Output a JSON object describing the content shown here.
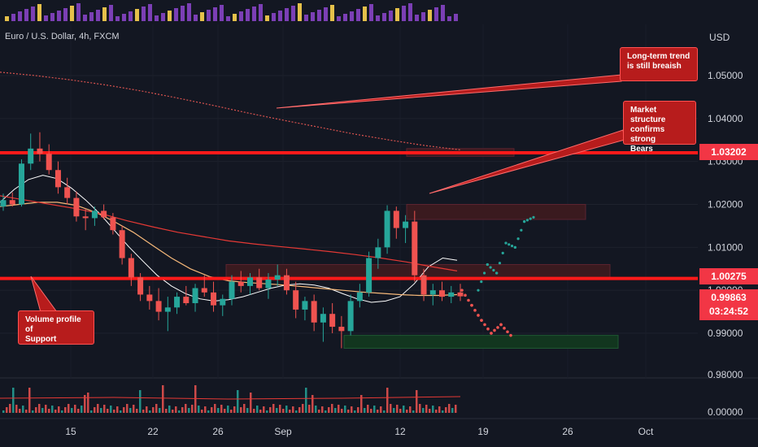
{
  "header": {
    "symbol_line": "Euro / U.S. Dollar, 4h, FXCM",
    "currency": "USD"
  },
  "colors": {
    "background": "#131722",
    "up": "#26a69a",
    "down": "#ef5350",
    "level_line": "#ff1a1a",
    "ma_fast": "#ffffff",
    "ma_mid": "#f7b97a",
    "ma_slow": "#e53935",
    "ma_200_dotted": "#d9534f",
    "zone_supply": "#3a1a1f",
    "zone_demand": "#12361f"
  },
  "annotations": {
    "long_term": "Long-term trend\nis still breaish",
    "market_structure": "Market structure\nconfirms strong\nBears",
    "volume_profile": "Volume profile of\nSupport"
  },
  "price_labels": {
    "resistance": "1.03202",
    "support": "1.00275",
    "last_price": "0.99863",
    "countdown": "03:24:52"
  },
  "chart_data": {
    "type": "candlestick",
    "title": "Euro / U.S. Dollar, 4h, FXCM",
    "y_axis": {
      "label": "USD",
      "ticks": [
        "1.05000",
        "1.04000",
        "1.03000",
        "1.02000",
        "1.01000",
        "1.00000",
        "0.99000",
        "0.98000"
      ],
      "range": [
        0.9795,
        1.0565
      ]
    },
    "volume_axis": {
      "ticks": [
        "0.00000"
      ]
    },
    "x_axis": {
      "ticks": [
        "15",
        "22",
        "26",
        "Sep",
        "12",
        "19",
        "26",
        "Oct"
      ]
    },
    "horizontal_levels": [
      1.03202,
      1.00275
    ],
    "last_price": 0.99863,
    "ohlc": [
      [
        1.0195,
        1.0225,
        1.0185,
        1.021
      ],
      [
        1.021,
        1.0228,
        1.0195,
        1.02
      ],
      [
        1.02,
        1.0305,
        1.0195,
        1.0295
      ],
      [
        1.0295,
        1.0365,
        1.028,
        1.033
      ],
      [
        1.033,
        1.0368,
        1.03,
        1.0318
      ],
      [
        1.0318,
        1.034,
        1.027,
        1.028
      ],
      [
        1.028,
        1.03,
        1.0225,
        1.024
      ],
      [
        1.024,
        1.0262,
        1.02,
        1.0215
      ],
      [
        1.0215,
        1.023,
        1.016,
        1.0172
      ],
      [
        1.0172,
        1.019,
        1.014,
        1.0168
      ],
      [
        1.0168,
        1.0195,
        1.015,
        1.0185
      ],
      [
        1.0185,
        1.02,
        1.0165,
        1.017
      ],
      [
        1.017,
        1.018,
        1.013,
        1.014
      ],
      [
        1.014,
        1.015,
        1.006,
        1.0075
      ],
      [
        1.0075,
        1.0085,
        1.001,
        1.003
      ],
      [
        1.003,
        1.004,
        0.9975,
        0.999
      ],
      [
        0.999,
        1.001,
        0.9955,
        0.9975
      ],
      [
        0.9975,
        1.0005,
        0.993,
        0.995
      ],
      [
        0.995,
        0.9985,
        0.9905,
        0.996
      ],
      [
        0.996,
        0.9995,
        0.9945,
        0.9985
      ],
      [
        0.9985,
        1.001,
        0.9965,
        0.997
      ],
      [
        0.997,
        1.0015,
        0.995,
        1.0005
      ],
      [
        1.0005,
        1.0035,
        0.9985,
        0.9995
      ],
      [
        0.9995,
        1.002,
        0.995,
        0.9965
      ],
      [
        0.9965,
        0.999,
        0.994,
        0.998
      ],
      [
        0.998,
        1.0035,
        0.9965,
        1.002
      ],
      [
        1.002,
        1.0045,
        0.9995,
        1.001
      ],
      [
        1.001,
        1.004,
        0.999,
        1.003
      ],
      [
        1.003,
        1.005,
        1.0,
        1.0005
      ],
      [
        1.0005,
        1.004,
        0.998,
        1.0025
      ],
      [
        1.0025,
        1.006,
        1.001,
        1.0035
      ],
      [
        1.0035,
        1.005,
        0.999,
        1.0
      ],
      [
        1.0,
        1.002,
        0.9935,
        0.9955
      ],
      [
        0.9955,
        0.9985,
        0.993,
        0.9975
      ],
      [
        0.9975,
        0.999,
        0.9905,
        0.9925
      ],
      [
        0.9925,
        0.996,
        0.988,
        0.9945
      ],
      [
        0.9945,
        0.997,
        0.99,
        0.9915
      ],
      [
        0.9915,
        0.994,
        0.9865,
        0.9905
      ],
      [
        0.9905,
        0.999,
        0.9895,
        0.9975
      ],
      [
        0.9975,
        1.0015,
        0.996,
        0.9995
      ],
      [
        0.9995,
        1.009,
        0.9985,
        1.0075
      ],
      [
        1.0075,
        1.012,
        1.005,
        1.01
      ],
      [
        1.01,
        1.0198,
        1.0085,
        1.0185
      ],
      [
        1.0185,
        1.0195,
        1.012,
        1.0145
      ],
      [
        1.0145,
        1.0175,
        1.011,
        1.016
      ],
      [
        1.016,
        1.0185,
        1.002,
        1.0035
      ],
      [
        1.0035,
        1.005,
        0.9975,
        0.999
      ],
      [
        0.999,
        1.0015,
        0.9965,
        1.0
      ],
      [
        1.0,
        1.002,
        0.9975,
        0.9985
      ],
      [
        0.9985,
        1.001,
        0.997,
        0.9995
      ],
      [
        0.9995,
        1.0015,
        0.9975,
        0.9986
      ]
    ],
    "moving_averages": [
      {
        "values": [
          1.0205,
          1.0235,
          1.0258,
          1.0268,
          1.026,
          1.0238,
          1.021,
          1.0178,
          1.014,
          1.0102,
          1.0068,
          1.0035,
          1.001,
          0.9992,
          0.998,
          0.9975,
          0.9978,
          0.9985,
          0.9995,
          1.0005,
          1.0012,
          1.0015,
          1.0012,
          1.0005,
          0.9992,
          0.998,
          0.9972,
          0.9975,
          0.9985,
          1.0015,
          1.0055,
          1.0075,
          1.007
        ]
      },
      {
        "values": [
          1.0195,
          1.02,
          1.0205,
          1.0205,
          1.0198,
          1.0182,
          1.016,
          1.0135,
          1.0105,
          1.0075,
          1.005,
          1.0032,
          1.0022,
          1.0018,
          1.0015,
          1.0012,
          1.0008,
          1.0004,
          1.0,
          0.9996,
          0.9993,
          0.999,
          0.9988,
          0.9988,
          0.999
        ]
      },
      {
        "values": [
          1.022,
          1.021,
          1.02,
          1.019,
          1.0178,
          1.0162,
          1.0148,
          1.0135,
          1.0125,
          1.0115,
          1.0108,
          1.0102,
          1.0096,
          1.009,
          1.0083,
          1.0075,
          1.0066,
          1.0055,
          1.0045
        ]
      },
      {
        "values": [
          1.0508,
          1.05,
          1.049,
          1.0478,
          1.0464,
          1.0448,
          1.0431,
          1.0413,
          1.0396,
          1.038,
          1.0364,
          1.035,
          1.0337,
          1.0327
        ]
      }
    ],
    "zones": [
      {
        "y": [
          1.0312,
          1.033
        ]
      },
      {
        "y": [
          1.0165,
          1.02
        ]
      },
      {
        "y": [
          1.0025,
          1.006
        ]
      },
      {
        "y": [
          0.9865,
          0.9895
        ]
      }
    ],
    "projection_up": [
      [
        1.0,
        1.006,
        1.004,
        1.011,
        1.01,
        1.016,
        1.017
      ]
    ],
    "projection_down": [
      [
        1.0,
        0.9965,
        0.993,
        0.99,
        0.992,
        0.9895
      ]
    ]
  }
}
